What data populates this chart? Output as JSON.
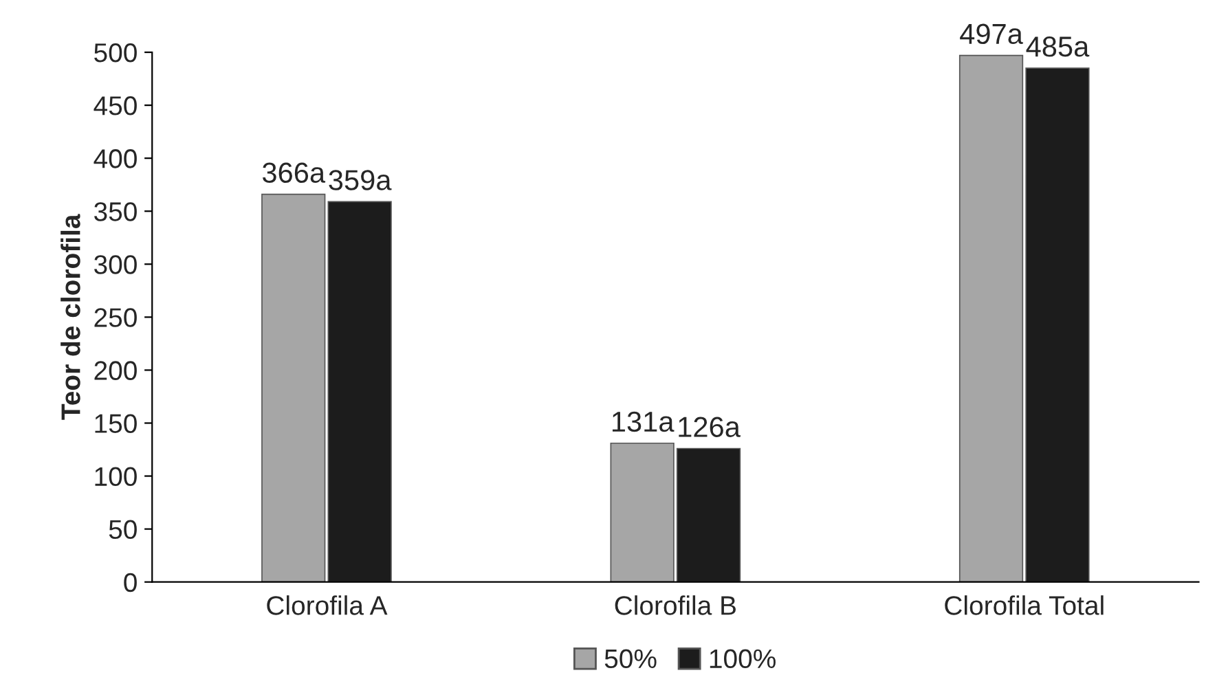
{
  "chart_data": {
    "type": "bar",
    "ylabel": "Teor de clorofila",
    "categories": [
      "Clorofila A",
      "Clorofila B",
      "Clorofila Total"
    ],
    "series": [
      {
        "name": "50%",
        "color": "#a6a6a6",
        "values": [
          366,
          131,
          497
        ],
        "value_labels": [
          "366a",
          "131a",
          "497a"
        ]
      },
      {
        "name": "100%",
        "color": "#1c1c1c",
        "values": [
          359,
          126,
          485
        ],
        "value_labels": [
          "359a",
          "126a",
          "485a"
        ]
      }
    ],
    "ylim": [
      0,
      500
    ],
    "yticks": [
      0,
      50,
      100,
      150,
      200,
      250,
      300,
      350,
      400,
      450,
      500
    ],
    "grid": false,
    "legend": "bottom"
  }
}
